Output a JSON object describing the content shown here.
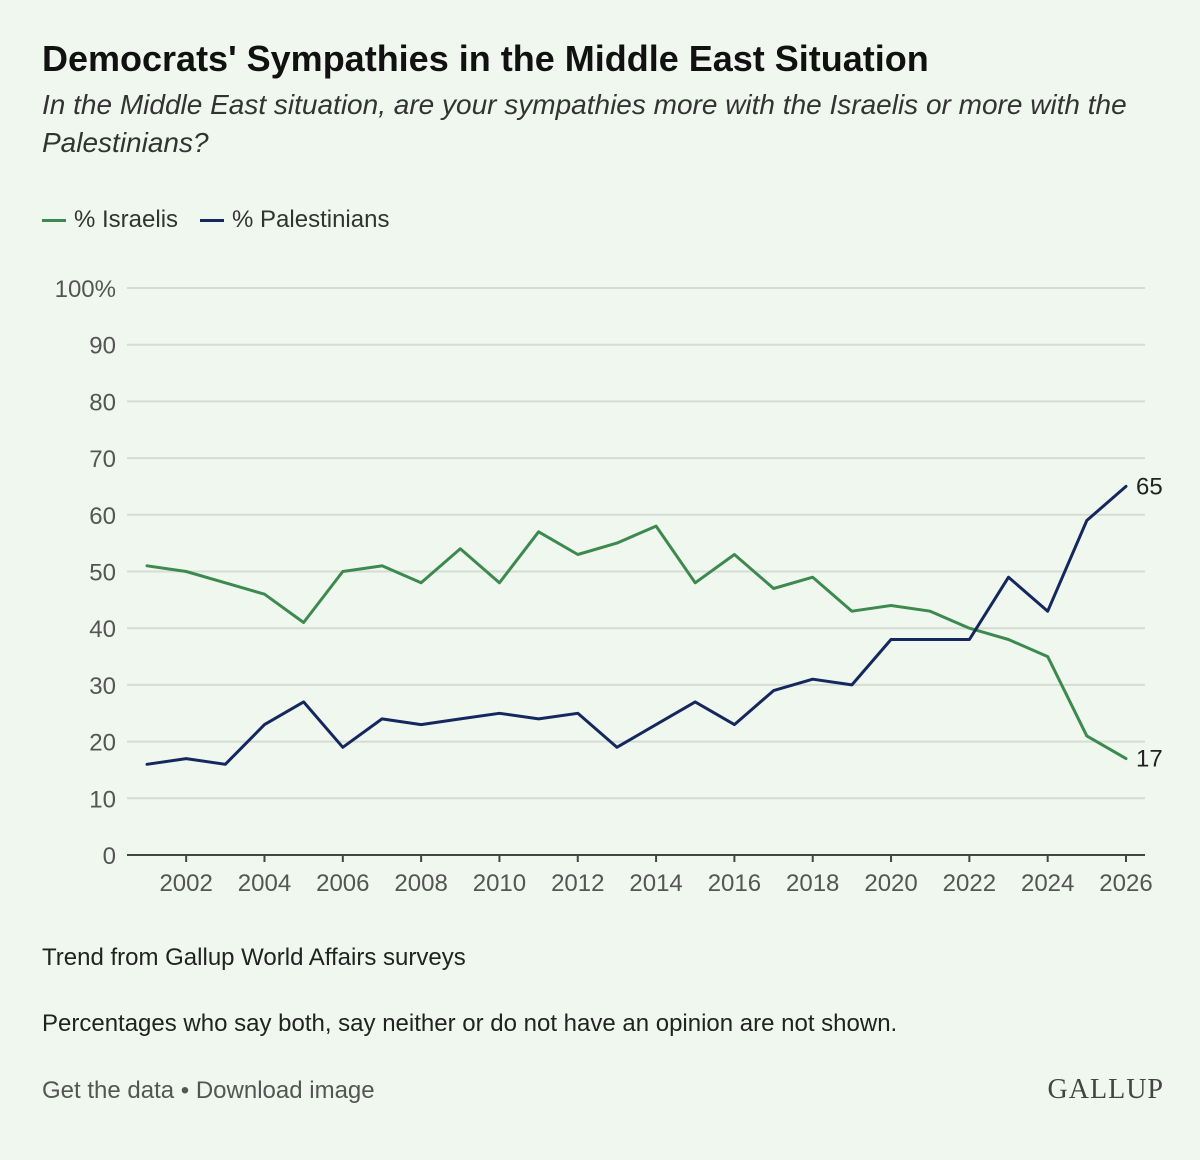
{
  "title": "Democrats' Sympathies in the Middle East Situation",
  "subtitle": "In the Middle East situation, are your sympathies more with the Israelis or more with the Palestinians?",
  "legend": {
    "israelis": "% Israelis",
    "palestinians": "% Palestinians"
  },
  "colors": {
    "israelis": "#3d8a4f",
    "palestinians": "#14285e",
    "grid": "#d5dcd4",
    "axis": "#444444",
    "tick": "#555555"
  },
  "notes": {
    "source": "Trend from Gallup World Affairs surveys",
    "caveat": "Percentages who say both, say neither or do not have an opinion are not shown."
  },
  "footer": {
    "get_data": "Get the data",
    "separator": " • ",
    "download": "Download image",
    "brand": "GALLUP"
  },
  "chart_data": {
    "type": "line",
    "title": "Democrats' Sympathies in the Middle East Situation",
    "xlim": [
      2001,
      2026
    ],
    "ylim": [
      0,
      100
    ],
    "x_ticks": [
      2002,
      2004,
      2006,
      2008,
      2010,
      2012,
      2014,
      2016,
      2018,
      2020,
      2022,
      2024,
      2026
    ],
    "y_ticks": [
      0,
      10,
      20,
      30,
      40,
      50,
      60,
      70,
      80,
      90,
      100
    ],
    "y_top_label": "100%",
    "grid": true,
    "legend_position": "top-left",
    "x": [
      2001,
      2002,
      2003,
      2004,
      2005,
      2006,
      2007,
      2008,
      2009,
      2010,
      2011,
      2012,
      2013,
      2014,
      2015,
      2016,
      2017,
      2018,
      2019,
      2020,
      2021,
      2022,
      2023,
      2024,
      2025,
      2026
    ],
    "series": [
      {
        "name": "% Israelis",
        "key": "israelis",
        "values": [
          51,
          50,
          48,
          46,
          41,
          50,
          51,
          48,
          54,
          48,
          57,
          53,
          55,
          58,
          48,
          53,
          47,
          49,
          43,
          44,
          43,
          40,
          38,
          35,
          21,
          17
        ],
        "end_label": "17"
      },
      {
        "name": "% Palestinians",
        "key": "palestinians",
        "values": [
          16,
          17,
          16,
          23,
          27,
          19,
          24,
          23,
          24,
          25,
          24,
          25,
          19,
          23,
          27,
          23,
          29,
          31,
          30,
          38,
          38,
          38,
          49,
          43,
          59,
          65
        ],
        "end_label": "65"
      }
    ]
  }
}
